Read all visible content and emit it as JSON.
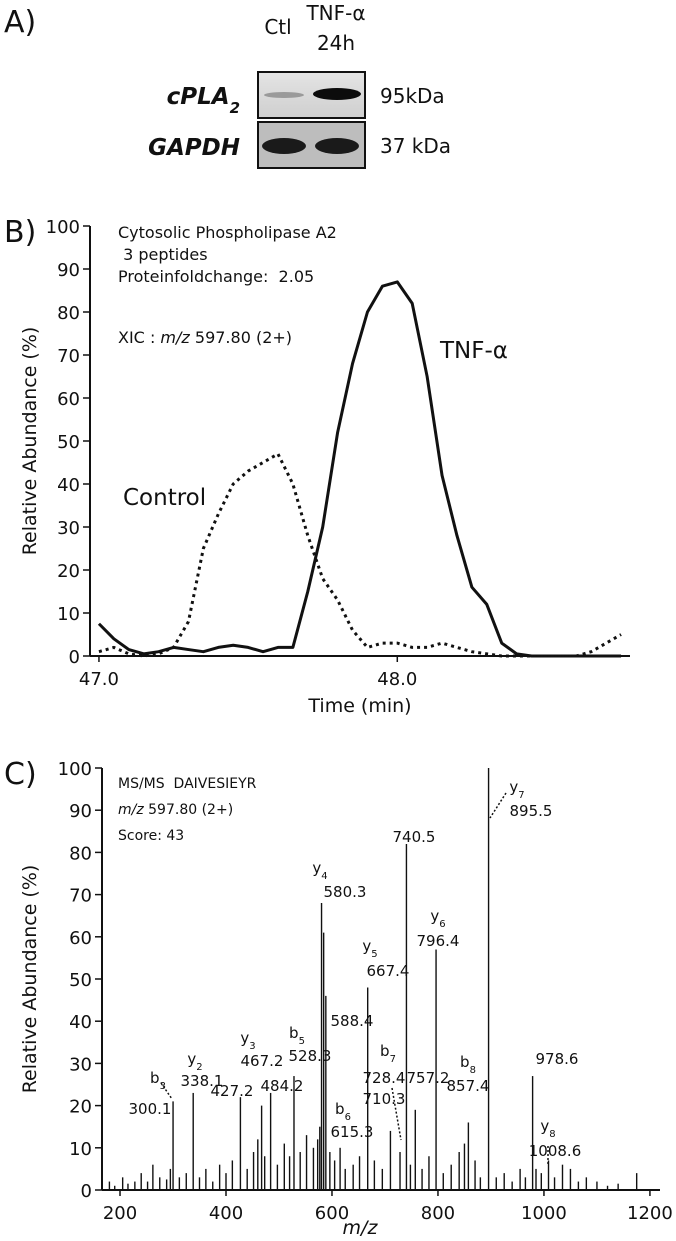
{
  "panel_a": {
    "label": "A)",
    "lanes": [
      [
        "Ctl"
      ],
      [
        "TNF-α",
        "24h"
      ]
    ],
    "rows": [
      {
        "name": "cPLA",
        "sub": "2",
        "mw": "95kDa"
      },
      {
        "name": "GAPDH",
        "mw": "37 kDa"
      }
    ]
  },
  "chart_data": [
    {
      "type": "line",
      "panel_label": "B)",
      "annotations": [
        "Cytosolic Phospholipase A2",
        " 3 peptides",
        "Proteinfoldchange:  2.05"
      ],
      "xic": {
        "prefix": "XIC : ",
        "italic": "m/z",
        "suffix": " 597.80 (2+)"
      },
      "xlabel": "Time (min)",
      "ylabel": "Relative Abundance (%)",
      "x": [
        47.0,
        47.05,
        47.1,
        47.15,
        47.2,
        47.25,
        47.3,
        47.35,
        47.4,
        47.45,
        47.5,
        47.55,
        47.6,
        47.65,
        47.7,
        47.75,
        47.8,
        47.85,
        47.9,
        47.95,
        48.0,
        48.05,
        48.1,
        48.15,
        48.2,
        48.25,
        48.3,
        48.35,
        48.4,
        48.45,
        48.5,
        48.55,
        48.6,
        48.65,
        48.7,
        48.75
      ],
      "series": [
        {
          "name": "TNF-α",
          "color": "#111111",
          "style": "solid",
          "values": [
            7.5,
            4,
            1.5,
            0.5,
            1,
            2,
            1.5,
            1,
            2,
            2.5,
            2,
            1,
            2,
            2,
            15,
            30,
            52,
            68,
            80,
            86,
            87,
            82,
            65,
            42,
            28,
            16,
            12,
            3,
            0.5,
            0,
            0,
            0,
            0,
            0,
            0,
            0
          ]
        },
        {
          "name": "Control",
          "color": "#111111",
          "style": "dotted",
          "values": [
            1,
            2,
            0.5,
            0,
            0.5,
            2,
            8,
            25,
            33,
            40,
            43,
            45,
            47,
            40,
            28,
            18,
            13,
            6,
            2,
            3,
            3,
            2,
            2,
            3,
            2,
            1,
            0.5,
            0,
            0,
            0,
            0,
            0,
            0,
            1,
            3,
            5
          ]
        }
      ],
      "xlim": [
        46.97,
        48.78
      ],
      "xticks": [
        {
          "value": 47,
          "label": "47.0"
        },
        {
          "value": 48,
          "label": "48.0"
        }
      ],
      "ylim": [
        0,
        100
      ],
      "yticks": [
        0,
        10,
        20,
        30,
        40,
        50,
        60,
        70,
        80,
        90,
        100
      ]
    },
    {
      "type": "stem",
      "panel_label": "C)",
      "header": [
        "MS/MS  DAIVESIEYR",
        {
          "italic": "m/z",
          "suffix": " 597.80 (2+)"
        },
        "Score: 43"
      ],
      "xlabel": "m/z",
      "ylabel": "Relative Abundance (%)",
      "color": "#111111",
      "x": [
        180,
        190,
        205,
        215,
        228,
        240,
        252,
        262,
        275,
        288,
        295,
        300.1,
        312,
        325,
        338.1,
        350,
        362,
        375,
        388,
        400,
        412,
        427.2,
        440,
        452,
        460,
        467.2,
        473,
        484.2,
        497,
        510,
        520,
        528.3,
        540,
        552,
        565,
        573,
        577,
        580.3,
        584.3,
        588.4,
        596,
        605,
        615.3,
        625,
        640,
        652,
        667.4,
        680,
        695,
        710.3,
        728.4,
        740.5,
        748,
        757.2,
        770,
        783,
        796.4,
        810,
        825,
        840,
        850,
        857.4,
        870,
        880,
        895.5,
        910,
        925,
        940,
        955,
        965,
        978.6,
        985,
        995,
        1008.6,
        1020,
        1035,
        1050,
        1065,
        1080,
        1100,
        1120,
        1140,
        1175
      ],
      "values": [
        2,
        1,
        3,
        1.5,
        2,
        4,
        2,
        6,
        3,
        2.5,
        5,
        21,
        3,
        4,
        23,
        3,
        5,
        2,
        6,
        4,
        7,
        22,
        5,
        9,
        12,
        20,
        8,
        23,
        6,
        11,
        8,
        27,
        9,
        13,
        10,
        12,
        15,
        68,
        61,
        46,
        9,
        7,
        10,
        5,
        6,
        8,
        48,
        7,
        5,
        14,
        9,
        82,
        6,
        19,
        5,
        8,
        57,
        4,
        6,
        9,
        11,
        16,
        7,
        3,
        100,
        3,
        4,
        2,
        5,
        3,
        27,
        5,
        4,
        7,
        3,
        6,
        5,
        2,
        3,
        2,
        1,
        1.5,
        4
      ],
      "peak_labels": [
        {
          "ion": "b",
          "sub": "3",
          "mz": "300.1"
        },
        {
          "ion": "y",
          "sub": "2",
          "mz": "338.1"
        },
        {
          "mz": "427.2"
        },
        {
          "ion": "y",
          "sub": "3",
          "mz": "467.2"
        },
        {
          "mz": "484.2"
        },
        {
          "ion": "b",
          "sub": "5",
          "mz": "528.3"
        },
        {
          "ion": "y",
          "sub": "4",
          "mz": "580.3"
        },
        {
          "mz": "588.4"
        },
        {
          "ion": "b",
          "sub": "6",
          "mz": "615.3"
        },
        {
          "ion": "y",
          "sub": "5",
          "mz": "667.4"
        },
        {
          "mz": "710.3"
        },
        {
          "ion": "b",
          "sub": "7",
          "mz": "728.4"
        },
        {
          "mz": "740.5"
        },
        {
          "mz": "757.2"
        },
        {
          "ion": "y",
          "sub": "6",
          "mz": "796.4"
        },
        {
          "ion": "b",
          "sub": "8",
          "mz": "857.4"
        },
        {
          "ion": "y",
          "sub": "7",
          "mz": "895.5"
        },
        {
          "mz": "978.6"
        },
        {
          "ion": "y",
          "sub": "8",
          "mz": "1008.6"
        }
      ],
      "xlim": [
        166,
        1219
      ],
      "xticks": [
        200,
        400,
        600,
        800,
        1000,
        1200
      ],
      "ylim": [
        0,
        100
      ],
      "yticks": [
        0,
        10,
        20,
        30,
        40,
        50,
        60,
        70,
        80,
        90,
        100
      ]
    }
  ]
}
